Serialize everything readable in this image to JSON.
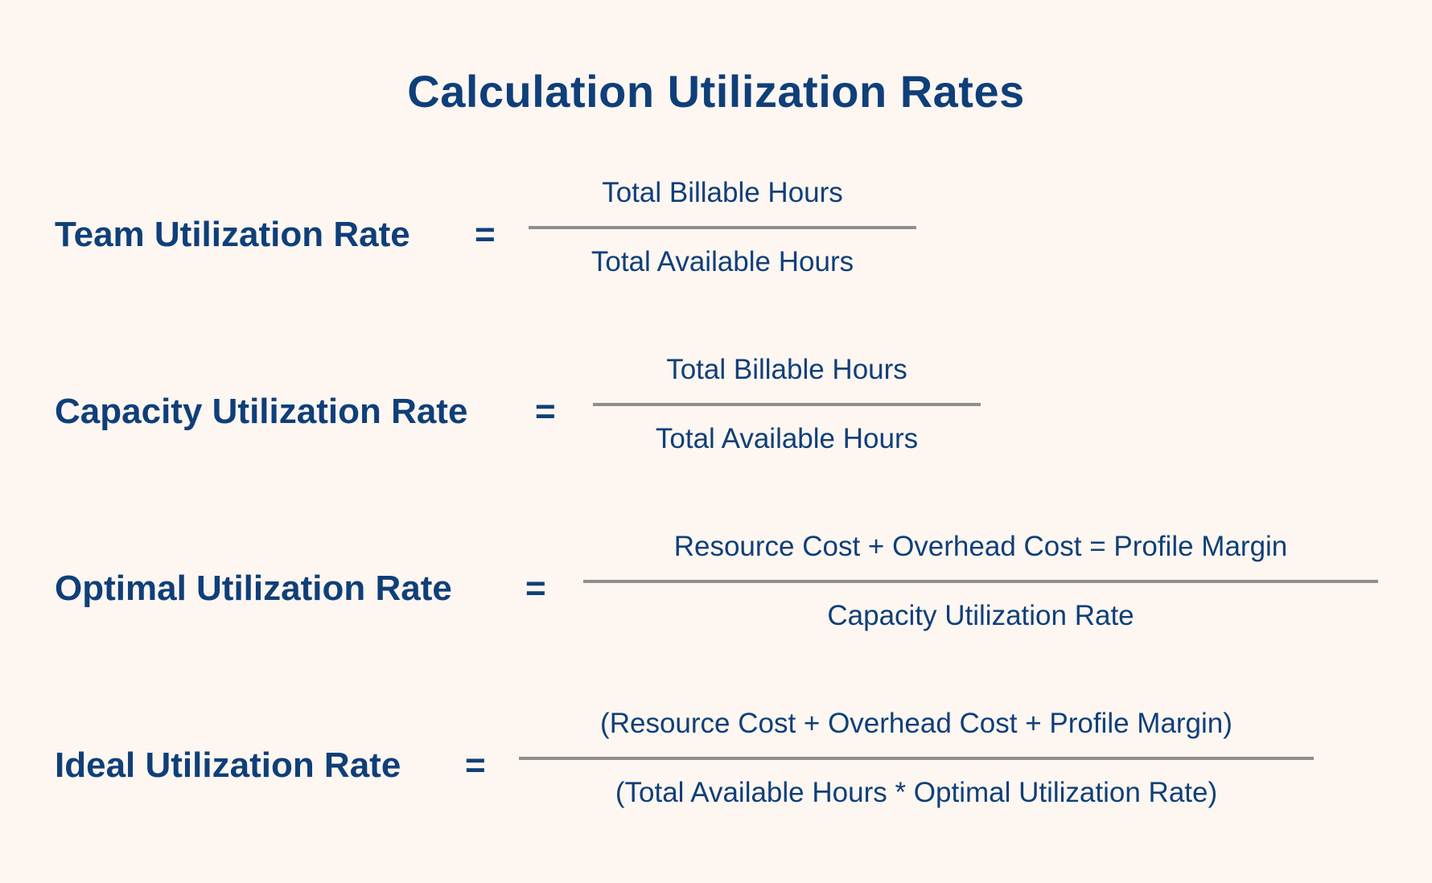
{
  "title": "Calculation Utilization Rates",
  "formulas": [
    {
      "label": "Team Utilization Rate",
      "equals": "=",
      "numerator": "Total Billable Hours",
      "denominator": "Total Available Hours"
    },
    {
      "label": "Capacity Utilization Rate",
      "equals": "=",
      "numerator": "Total Billable Hours",
      "denominator": "Total Available Hours"
    },
    {
      "label": "Optimal Utilization Rate",
      "equals": "=",
      "numerator": "Resource Cost + Overhead Cost = Profile Margin",
      "denominator": "Capacity Utilization Rate"
    },
    {
      "label": "Ideal Utilization Rate",
      "equals": "=",
      "numerator": "(Resource Cost + Overhead Cost + Profile Margin)",
      "denominator": "(Total Available Hours * Optimal Utilization Rate)"
    }
  ],
  "colors": {
    "background": "#fdf6f1",
    "text": "#0f3f79",
    "fraction_bar": "#8f8f8f"
  }
}
